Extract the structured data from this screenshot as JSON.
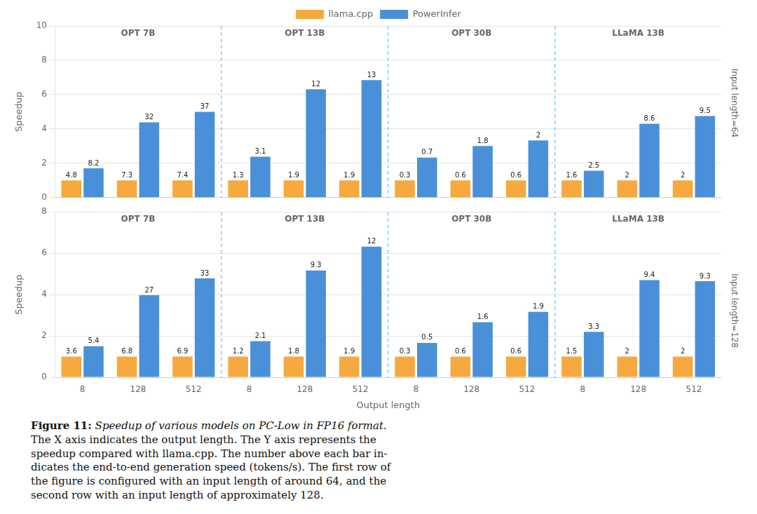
{
  "chart_data": [
    {
      "type": "bar",
      "title": "Input length=64",
      "ylabel": "Speedup",
      "categories": [
        "8",
        "128",
        "512",
        "8",
        "128",
        "512",
        "8",
        "128",
        "512",
        "8",
        "128",
        "512"
      ],
      "groups": [
        "OPT 7B",
        "OPT 13B",
        "OPT 30B",
        "LLaMA 13B"
      ],
      "series": [
        {
          "name": "llama.cpp",
          "color": "#F5A93E",
          "values": [
            1,
            1,
            1,
            1,
            1,
            1,
            1,
            1,
            1,
            1,
            1,
            1
          ],
          "tokens_per_s": [
            4.8,
            7.3,
            7.4,
            1.3,
            1.9,
            1.9,
            0.3,
            0.6,
            0.6,
            1.6,
            2,
            2
          ]
        },
        {
          "name": "PowerInfer",
          "color": "#4A90D9",
          "values": [
            1.7083333333333333,
            4.383561643835616,
            5,
            2.3846153846153846,
            6.315789473684211,
            6.842105263157895,
            2.3333333333333335,
            3,
            3.3333333333333335,
            1.5625,
            4.3,
            4.75
          ],
          "tokens_per_s": [
            8.2,
            32,
            37,
            3.1,
            12,
            13,
            0.7,
            1.8,
            2,
            2.5,
            8.6,
            9.5
          ]
        }
      ],
      "ylim": [
        0,
        10
      ],
      "yticks": [
        0,
        2,
        4,
        6,
        8,
        10
      ],
      "grid": true,
      "legend": "top",
      "tick_labels": "y"
    },
    {
      "type": "bar",
      "title": "Input length=128",
      "xlabel": "Output length",
      "ylabel": "Speedup",
      "categories": [
        "8",
        "128",
        "512",
        "8",
        "128",
        "512",
        "8",
        "128",
        "512",
        "8",
        "128",
        "512"
      ],
      "groups": [
        "OPT 7B",
        "OPT 13B",
        "OPT 30B",
        "LLaMA 13B"
      ],
      "series": [
        {
          "name": "llama.cpp",
          "color": "#F5A93E",
          "values": [
            1,
            1,
            1,
            1,
            1,
            1,
            1,
            1,
            1,
            1,
            1,
            1
          ],
          "tokens_per_s": [
            3.6,
            6.8,
            6.9,
            1.2,
            1.8,
            1.9,
            0.3,
            0.6,
            0.6,
            1.5,
            2,
            2
          ]
        },
        {
          "name": "PowerInfer",
          "color": "#4A90D9",
          "values": [
            1.5,
            3.970588235294118,
            4.782608695652174,
            1.75,
            5.166666666666667,
            6.315789473684211,
            1.6666666666666667,
            2.6666666666666665,
            3.1666666666666665,
            2.2,
            4.7,
            4.65
          ],
          "tokens_per_s": [
            5.4,
            27,
            33,
            2.1,
            9.3,
            12,
            0.5,
            1.6,
            1.9,
            3.3,
            9.4,
            9.3
          ]
        }
      ],
      "ylim": [
        0,
        8
      ],
      "yticks": [
        0,
        2,
        4,
        6,
        8
      ],
      "grid": true
    }
  ],
  "caption": {
    "label": "Figure 11:",
    "title": "Speedup of various models on PC-Low in FP16 format.",
    "lines": [
      "The X axis indicates the output length. The Y axis represents the",
      "speedup compared with llama.cpp. The number above each bar in-",
      "dicates the end-to-end generation speed (tokens/s). The first row of",
      "the figure is configured with an input length of around 64, and the",
      "second row with an input length of approximately 128."
    ]
  }
}
